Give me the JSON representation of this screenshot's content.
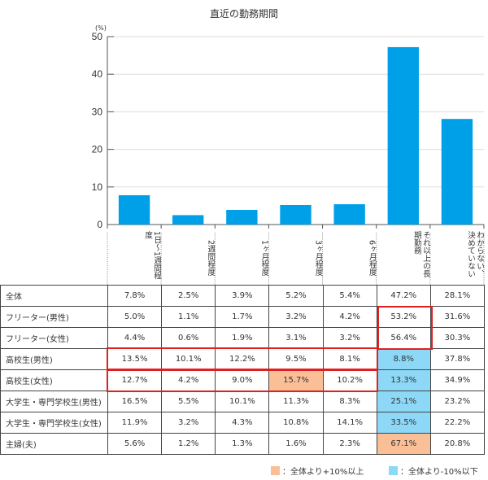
{
  "chart_data": {
    "type": "bar",
    "title": "直近の勤務期間",
    "ylabel": "(%)",
    "ylim": [
      0,
      50
    ],
    "yticks": [
      0,
      10,
      20,
      30,
      40,
      50
    ],
    "grid": true,
    "bar_color": "#00a0e9",
    "categories": [
      "1日～1週間程度",
      "2週間程度",
      "1ヶ月程度",
      "3ヶ月程度",
      "6ヶ月程度",
      "それ以上の長期勤務",
      "わからない、決めていない"
    ],
    "values": [
      7.8,
      2.5,
      3.9,
      5.2,
      5.4,
      47.2,
      28.1
    ]
  },
  "table": {
    "rows": [
      {
        "label": "全体",
        "cells": [
          "7.8%",
          "2.5%",
          "3.9%",
          "5.2%",
          "5.4%",
          "47.2%",
          "28.1%"
        ],
        "marks": [
          "",
          "",
          "",
          "",
          "",
          "",
          ""
        ]
      },
      {
        "label": "フリーター(男性)",
        "cells": [
          "5.0%",
          "1.1%",
          "1.7%",
          "3.2%",
          "4.2%",
          "53.2%",
          "31.6%"
        ],
        "marks": [
          "",
          "",
          "",
          "",
          "",
          "",
          ""
        ]
      },
      {
        "label": "フリーター(女性)",
        "cells": [
          "4.4%",
          "0.6%",
          "1.9%",
          "3.1%",
          "3.2%",
          "56.4%",
          "30.3%"
        ],
        "marks": [
          "",
          "",
          "",
          "",
          "",
          "",
          ""
        ]
      },
      {
        "label": "高校生(男性)",
        "cells": [
          "13.5%",
          "10.1%",
          "12.2%",
          "9.5%",
          "8.1%",
          "8.8%",
          "37.8%"
        ],
        "marks": [
          "",
          "",
          "",
          "",
          "",
          "lo",
          ""
        ]
      },
      {
        "label": "高校生(女性)",
        "cells": [
          "12.7%",
          "4.2%",
          "9.0%",
          "15.7%",
          "10.2%",
          "13.3%",
          "34.9%"
        ],
        "marks": [
          "",
          "",
          "",
          "hi",
          "",
          "lo",
          ""
        ]
      },
      {
        "label": "大学生・専門学校生(男性)",
        "cells": [
          "16.5%",
          "5.5%",
          "10.1%",
          "11.3%",
          "8.3%",
          "25.1%",
          "23.2%"
        ],
        "marks": [
          "",
          "",
          "",
          "",
          "",
          "lo",
          ""
        ]
      },
      {
        "label": "大学生・専門学校生(女性)",
        "cells": [
          "11.9%",
          "3.2%",
          "4.3%",
          "10.8%",
          "14.1%",
          "33.5%",
          "22.2%"
        ],
        "marks": [
          "",
          "",
          "",
          "",
          "",
          "lo",
          ""
        ]
      },
      {
        "label": "主婦(夫)",
        "cells": [
          "5.6%",
          "1.2%",
          "1.3%",
          "1.6%",
          "2.3%",
          "67.1%",
          "20.8%"
        ],
        "marks": [
          "",
          "",
          "",
          "",
          "",
          "hi",
          ""
        ]
      }
    ]
  },
  "legend": {
    "high": {
      "label": "：全体より+10%以上",
      "color": "#fbbf97"
    },
    "low": {
      "label": "：全体より-10%以下",
      "color": "#8dd8f6"
    }
  },
  "highlight_color": "#e02020"
}
